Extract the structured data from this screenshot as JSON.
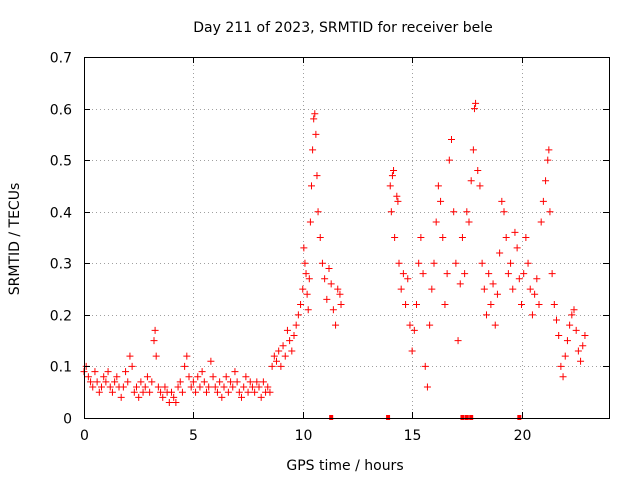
{
  "chart_data": {
    "type": "scatter",
    "title": "Day 211 of 2023, SRMTID for receiver bele",
    "xlabel": "GPS time / hours",
    "ylabel": "SRMTID / TECUs",
    "xlim": [
      0,
      24
    ],
    "ylim": [
      0,
      0.7
    ],
    "x_ticks": [
      0,
      5,
      10,
      15,
      20
    ],
    "y_ticks": [
      0,
      0.1,
      0.2,
      0.3,
      0.4,
      0.5,
      0.6,
      0.7
    ],
    "x_tick_labels": [
      "0",
      "5",
      "10",
      "15",
      "20"
    ],
    "y_tick_labels": [
      "0",
      "0.1",
      "0.2",
      "0.3",
      "0.4",
      "0.5",
      "0.6",
      "0.7"
    ],
    "grid": true,
    "marker": "plus",
    "color": "#ff0000",
    "series": [
      {
        "name": "SRMTID",
        "points": [
          [
            0.0,
            0.09
          ],
          [
            0.1,
            0.1
          ],
          [
            0.2,
            0.08
          ],
          [
            0.3,
            0.07
          ],
          [
            0.4,
            0.06
          ],
          [
            0.5,
            0.09
          ],
          [
            0.6,
            0.07
          ],
          [
            0.7,
            0.05
          ],
          [
            0.8,
            0.06
          ],
          [
            0.9,
            0.08
          ],
          [
            1.0,
            0.07
          ],
          [
            1.1,
            0.09
          ],
          [
            1.2,
            0.06
          ],
          [
            1.3,
            0.05
          ],
          [
            1.4,
            0.07
          ],
          [
            1.5,
            0.08
          ],
          [
            1.6,
            0.06
          ],
          [
            1.7,
            0.04
          ],
          [
            1.8,
            0.06
          ],
          [
            1.9,
            0.09
          ],
          [
            2.0,
            0.07
          ],
          [
            2.1,
            0.12
          ],
          [
            2.2,
            0.1
          ],
          [
            2.3,
            0.05
          ],
          [
            2.4,
            0.06
          ],
          [
            2.5,
            0.04
          ],
          [
            2.6,
            0.07
          ],
          [
            2.7,
            0.05
          ],
          [
            2.8,
            0.06
          ],
          [
            2.9,
            0.08
          ],
          [
            3.0,
            0.05
          ],
          [
            3.1,
            0.07
          ],
          [
            3.2,
            0.15
          ],
          [
            3.25,
            0.17
          ],
          [
            3.3,
            0.12
          ],
          [
            3.4,
            0.06
          ],
          [
            3.5,
            0.05
          ],
          [
            3.6,
            0.04
          ],
          [
            3.7,
            0.06
          ],
          [
            3.8,
            0.05
          ],
          [
            3.9,
            0.03
          ],
          [
            4.0,
            0.05
          ],
          [
            4.1,
            0.04
          ],
          [
            4.2,
            0.03
          ],
          [
            4.3,
            0.06
          ],
          [
            4.4,
            0.07
          ],
          [
            4.5,
            0.05
          ],
          [
            4.6,
            0.1
          ],
          [
            4.7,
            0.12
          ],
          [
            4.8,
            0.08
          ],
          [
            4.9,
            0.06
          ],
          [
            5.0,
            0.07
          ],
          [
            5.1,
            0.05
          ],
          [
            5.2,
            0.08
          ],
          [
            5.3,
            0.06
          ],
          [
            5.4,
            0.09
          ],
          [
            5.5,
            0.07
          ],
          [
            5.6,
            0.05
          ],
          [
            5.7,
            0.06
          ],
          [
            5.8,
            0.11
          ],
          [
            5.9,
            0.08
          ],
          [
            6.0,
            0.06
          ],
          [
            6.1,
            0.05
          ],
          [
            6.2,
            0.07
          ],
          [
            6.3,
            0.04
          ],
          [
            6.4,
            0.06
          ],
          [
            6.5,
            0.08
          ],
          [
            6.6,
            0.05
          ],
          [
            6.7,
            0.07
          ],
          [
            6.8,
            0.06
          ],
          [
            6.9,
            0.09
          ],
          [
            7.0,
            0.07
          ],
          [
            7.1,
            0.05
          ],
          [
            7.2,
            0.04
          ],
          [
            7.3,
            0.06
          ],
          [
            7.4,
            0.08
          ],
          [
            7.5,
            0.05
          ],
          [
            7.6,
            0.07
          ],
          [
            7.7,
            0.06
          ],
          [
            7.8,
            0.05
          ],
          [
            7.9,
            0.07
          ],
          [
            8.0,
            0.06
          ],
          [
            8.1,
            0.04
          ],
          [
            8.2,
            0.07
          ],
          [
            8.3,
            0.05
          ],
          [
            8.4,
            0.06
          ],
          [
            8.5,
            0.05
          ],
          [
            8.6,
            0.1
          ],
          [
            8.7,
            0.12
          ],
          [
            8.8,
            0.11
          ],
          [
            8.9,
            0.13
          ],
          [
            9.0,
            0.1
          ],
          [
            9.1,
            0.14
          ],
          [
            9.2,
            0.12
          ],
          [
            9.3,
            0.17
          ],
          [
            9.4,
            0.15
          ],
          [
            9.5,
            0.13
          ],
          [
            9.6,
            0.16
          ],
          [
            9.7,
            0.18
          ],
          [
            9.8,
            0.2
          ],
          [
            9.9,
            0.22
          ],
          [
            10.0,
            0.25
          ],
          [
            10.05,
            0.33
          ],
          [
            10.1,
            0.3
          ],
          [
            10.15,
            0.28
          ],
          [
            10.2,
            0.24
          ],
          [
            10.25,
            0.21
          ],
          [
            10.3,
            0.27
          ],
          [
            10.35,
            0.38
          ],
          [
            10.4,
            0.45
          ],
          [
            10.45,
            0.52
          ],
          [
            10.5,
            0.58
          ],
          [
            10.55,
            0.59
          ],
          [
            10.6,
            0.55
          ],
          [
            10.65,
            0.47
          ],
          [
            10.7,
            0.4
          ],
          [
            10.8,
            0.35
          ],
          [
            10.9,
            0.3
          ],
          [
            11.0,
            0.27
          ],
          [
            11.1,
            0.23
          ],
          [
            11.2,
            0.29
          ],
          [
            11.3,
            0.26
          ],
          [
            11.4,
            0.21
          ],
          [
            11.5,
            0.18
          ],
          [
            11.6,
            0.25
          ],
          [
            11.7,
            0.24
          ],
          [
            11.75,
            0.22
          ],
          [
            14.0,
            0.45
          ],
          [
            14.05,
            0.4
          ],
          [
            14.1,
            0.47
          ],
          [
            14.15,
            0.48
          ],
          [
            14.2,
            0.35
          ],
          [
            14.3,
            0.43
          ],
          [
            14.35,
            0.42
          ],
          [
            14.4,
            0.3
          ],
          [
            14.5,
            0.25
          ],
          [
            14.6,
            0.28
          ],
          [
            14.7,
            0.22
          ],
          [
            14.8,
            0.27
          ],
          [
            14.9,
            0.18
          ],
          [
            15.0,
            0.13
          ],
          [
            15.1,
            0.17
          ],
          [
            15.2,
            0.22
          ],
          [
            15.3,
            0.3
          ],
          [
            15.4,
            0.35
          ],
          [
            15.5,
            0.28
          ],
          [
            15.6,
            0.1
          ],
          [
            15.7,
            0.06
          ],
          [
            15.8,
            0.18
          ],
          [
            15.9,
            0.25
          ],
          [
            16.0,
            0.3
          ],
          [
            16.1,
            0.38
          ],
          [
            16.2,
            0.45
          ],
          [
            16.3,
            0.42
          ],
          [
            16.4,
            0.35
          ],
          [
            16.5,
            0.22
          ],
          [
            16.6,
            0.28
          ],
          [
            16.7,
            0.5
          ],
          [
            16.8,
            0.54
          ],
          [
            16.9,
            0.4
          ],
          [
            17.0,
            0.3
          ],
          [
            17.1,
            0.15
          ],
          [
            17.2,
            0.26
          ],
          [
            17.3,
            0.35
          ],
          [
            17.4,
            0.28
          ],
          [
            17.5,
            0.4
          ],
          [
            17.6,
            0.38
          ],
          [
            17.7,
            0.46
          ],
          [
            17.8,
            0.52
          ],
          [
            17.85,
            0.6
          ],
          [
            17.9,
            0.61
          ],
          [
            18.0,
            0.48
          ],
          [
            18.1,
            0.45
          ],
          [
            18.2,
            0.3
          ],
          [
            18.3,
            0.25
          ],
          [
            18.4,
            0.2
          ],
          [
            18.5,
            0.28
          ],
          [
            18.6,
            0.22
          ],
          [
            18.7,
            0.26
          ],
          [
            18.8,
            0.18
          ],
          [
            18.9,
            0.24
          ],
          [
            19.0,
            0.32
          ],
          [
            19.1,
            0.42
          ],
          [
            19.2,
            0.4
          ],
          [
            19.3,
            0.35
          ],
          [
            19.4,
            0.28
          ],
          [
            19.5,
            0.3
          ],
          [
            19.6,
            0.25
          ],
          [
            19.7,
            0.36
          ],
          [
            19.8,
            0.33
          ],
          [
            19.9,
            0.27
          ],
          [
            20.0,
            0.22
          ],
          [
            20.1,
            0.28
          ],
          [
            20.2,
            0.35
          ],
          [
            20.3,
            0.3
          ],
          [
            20.4,
            0.25
          ],
          [
            20.5,
            0.2
          ],
          [
            20.6,
            0.24
          ],
          [
            20.7,
            0.27
          ],
          [
            20.8,
            0.22
          ],
          [
            20.9,
            0.38
          ],
          [
            21.0,
            0.42
          ],
          [
            21.1,
            0.46
          ],
          [
            21.2,
            0.5
          ],
          [
            21.25,
            0.52
          ],
          [
            21.3,
            0.4
          ],
          [
            21.4,
            0.28
          ],
          [
            21.5,
            0.22
          ],
          [
            21.6,
            0.19
          ],
          [
            21.7,
            0.16
          ],
          [
            21.8,
            0.1
          ],
          [
            21.9,
            0.08
          ],
          [
            22.0,
            0.12
          ],
          [
            22.1,
            0.15
          ],
          [
            22.2,
            0.18
          ],
          [
            22.3,
            0.2
          ],
          [
            22.4,
            0.21
          ],
          [
            22.5,
            0.17
          ],
          [
            22.6,
            0.13
          ],
          [
            22.7,
            0.11
          ],
          [
            22.8,
            0.14
          ],
          [
            22.9,
            0.16
          ]
        ]
      }
    ],
    "zero_markers_x": [
      11.3,
      13.9,
      17.3,
      17.5,
      17.7,
      19.9
    ]
  }
}
